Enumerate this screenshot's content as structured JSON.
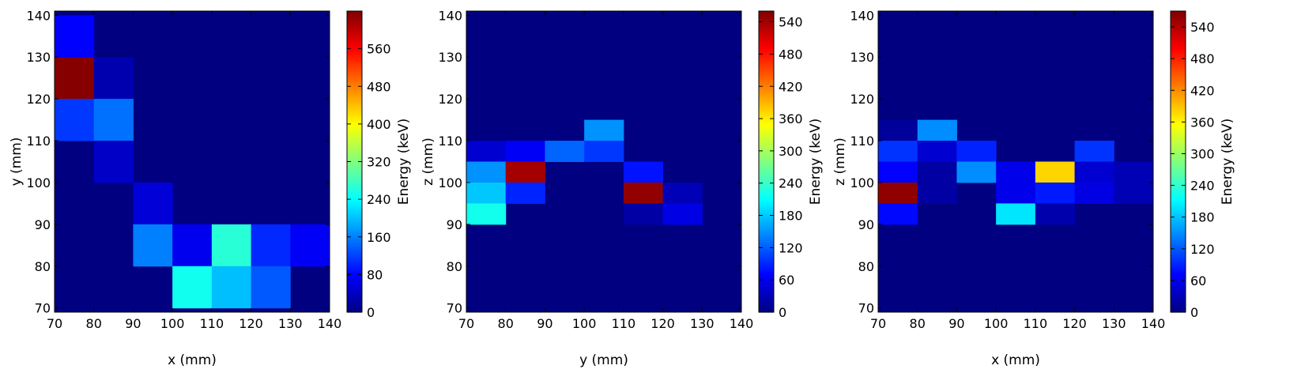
{
  "chart_data": [
    {
      "type": "heatmap",
      "xlabel": "x (mm)",
      "ylabel": "y (mm)",
      "colorbar_label": "Energy (keV)",
      "colormap": "jet",
      "xlim": [
        70,
        140
      ],
      "ylim": [
        69,
        141
      ],
      "xticks": [
        70,
        80,
        90,
        100,
        110,
        120,
        130,
        140
      ],
      "yticks": [
        70,
        80,
        90,
        100,
        110,
        120,
        130,
        140
      ],
      "bin_size": 10,
      "vmax": 640,
      "cbar_ticks": [
        0,
        80,
        160,
        240,
        320,
        400,
        480,
        560
      ],
      "cells": [
        {
          "x": 70,
          "y": 120,
          "value": 635
        },
        {
          "x": 70,
          "y": 120,
          "value": 635
        },
        {
          "x": 70,
          "y": 110,
          "value": 115
        },
        {
          "x": 70,
          "y": 120,
          "value": 635
        },
        {
          "x": 70,
          "y": 130,
          "value": 80
        },
        {
          "x": 80,
          "y": 120,
          "value": 30
        },
        {
          "x": 80,
          "y": 110,
          "value": 150
        },
        {
          "x": 80,
          "y": 100,
          "value": 45
        },
        {
          "x": 90,
          "y": 90,
          "value": 55
        },
        {
          "x": 90,
          "y": 80,
          "value": 160
        },
        {
          "x": 100,
          "y": 80,
          "value": 70
        },
        {
          "x": 100,
          "y": 70,
          "value": 250
        },
        {
          "x": 110,
          "y": 80,
          "value": 265
        },
        {
          "x": 110,
          "y": 70,
          "value": 200
        },
        {
          "x": 120,
          "y": 80,
          "value": 105
        },
        {
          "x": 120,
          "y": 70,
          "value": 135
        },
        {
          "x": 130,
          "y": 80,
          "value": 75
        }
      ]
    },
    {
      "type": "heatmap",
      "xlabel": "y (mm)",
      "ylabel": "z (mm)",
      "colorbar_label": "Energy (keV)",
      "colormap": "jet",
      "xlim": [
        70,
        140
      ],
      "ylim": [
        69,
        141
      ],
      "xticks": [
        70,
        80,
        90,
        100,
        110,
        120,
        130,
        140
      ],
      "yticks": [
        70,
        80,
        90,
        100,
        110,
        120,
        130,
        140
      ],
      "bin_size": 5,
      "vmax": 560,
      "cbar_ticks": [
        0,
        60,
        120,
        180,
        240,
        300,
        360,
        420,
        480,
        540
      ],
      "cells": [
        {
          "x": 70,
          "y": 105,
          "value": 45
        },
        {
          "x": 70,
          "y": 100,
          "value": 150
        },
        {
          "x": 70,
          "y": 95,
          "value": 180
        },
        {
          "x": 70,
          "y": 90,
          "value": 220
        },
        {
          "x": 80,
          "y": 105,
          "value": 65
        },
        {
          "x": 80,
          "y": 100,
          "value": 540
        },
        {
          "x": 80,
          "y": 95,
          "value": 90
        },
        {
          "x": 90,
          "y": 105,
          "value": 125
        },
        {
          "x": 100,
          "y": 110,
          "value": 150
        },
        {
          "x": 100,
          "y": 105,
          "value": 100
        },
        {
          "x": 110,
          "y": 100,
          "value": 80
        },
        {
          "x": 110,
          "y": 95,
          "value": 550
        },
        {
          "x": 110,
          "y": 90,
          "value": 20
        },
        {
          "x": 120,
          "y": 95,
          "value": 30
        },
        {
          "x": 120,
          "y": 90,
          "value": 55
        }
      ]
    },
    {
      "type": "heatmap",
      "xlabel": "x (mm)",
      "ylabel": "z (mm)",
      "colorbar_label": "Energy (keV)",
      "colormap": "jet",
      "xlim": [
        70,
        140
      ],
      "ylim": [
        69,
        141
      ],
      "xticks": [
        70,
        80,
        90,
        100,
        110,
        120,
        130,
        140
      ],
      "yticks": [
        70,
        80,
        90,
        100,
        110,
        120,
        130,
        140
      ],
      "bin_size": 5,
      "vmax": 570,
      "cbar_ticks": [
        0,
        60,
        120,
        180,
        240,
        300,
        360,
        420,
        480,
        540
      ],
      "cells": [
        {
          "x": 70,
          "y": 110,
          "value": 15
        },
        {
          "x": 70,
          "y": 105,
          "value": 100
        },
        {
          "x": 70,
          "y": 100,
          "value": 70
        },
        {
          "x": 70,
          "y": 95,
          "value": 560
        },
        {
          "x": 70,
          "y": 90,
          "value": 75
        },
        {
          "x": 80,
          "y": 110,
          "value": 150
        },
        {
          "x": 80,
          "y": 105,
          "value": 45
        },
        {
          "x": 80,
          "y": 100,
          "value": 20
        },
        {
          "x": 80,
          "y": 95,
          "value": 20
        },
        {
          "x": 90,
          "y": 105,
          "value": 90
        },
        {
          "x": 90,
          "y": 100,
          "value": 150
        },
        {
          "x": 100,
          "y": 100,
          "value": 60
        },
        {
          "x": 100,
          "y": 95,
          "value": 60
        },
        {
          "x": 100,
          "y": 90,
          "value": 200
        },
        {
          "x": 110,
          "y": 100,
          "value": 380
        },
        {
          "x": 110,
          "y": 95,
          "value": 85
        },
        {
          "x": 110,
          "y": 90,
          "value": 25
        },
        {
          "x": 120,
          "y": 105,
          "value": 100
        },
        {
          "x": 120,
          "y": 100,
          "value": 45
        },
        {
          "x": 120,
          "y": 95,
          "value": 55
        },
        {
          "x": 130,
          "y": 100,
          "value": 30
        },
        {
          "x": 130,
          "y": 95,
          "value": 30
        }
      ]
    }
  ]
}
